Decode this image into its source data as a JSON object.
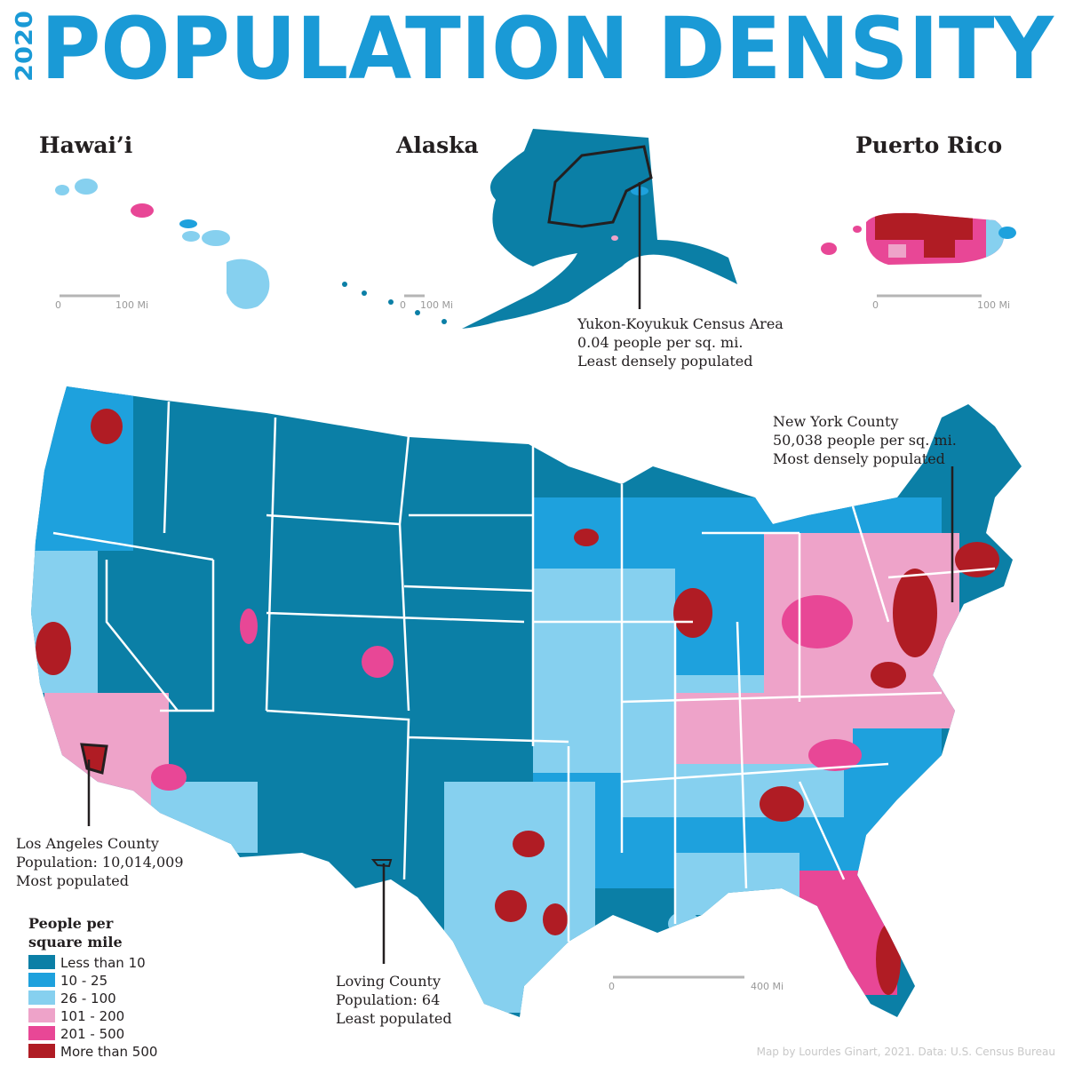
{
  "header": {
    "year": "2020",
    "title": "POPULATION DENSITY"
  },
  "insets": [
    {
      "label": "Hawai’i",
      "scale": {
        "start": "0",
        "end": "100 Mi"
      }
    },
    {
      "label": "Alaska",
      "scale": {
        "start": "0",
        "end": "100 Mi"
      }
    },
    {
      "label": "Puerto Rico",
      "scale": {
        "start": "0",
        "end": "100 Mi"
      }
    }
  ],
  "main_scale": {
    "start": "0",
    "end": "400 Mi"
  },
  "annotations": [
    {
      "lines": [
        "Yukon-Koyukuk Census Area",
        "0.04 people per sq. mi.",
        "Least densely populated"
      ]
    },
    {
      "lines": [
        "New York County",
        "50,038 people per sq. mi.",
        "Most densely populated"
      ]
    },
    {
      "lines": [
        "Los Angeles County",
        "Population: 10,014,009",
        "Most populated"
      ]
    },
    {
      "lines": [
        "Loving County",
        "Population: 64",
        "Least populated"
      ]
    }
  ],
  "legend": {
    "title_lines": [
      "People per",
      "square mile"
    ],
    "items": [
      {
        "label": "Less than 10",
        "color": "#0b7fa6"
      },
      {
        "label": "10 - 25",
        "color": "#1ea1dd"
      },
      {
        "label": "26 - 100",
        "color": "#86d0ef"
      },
      {
        "label": "101 - 200",
        "color": "#eea3c9"
      },
      {
        "label": "201 - 500",
        "color": "#e84796"
      },
      {
        "label": "More than 500",
        "color": "#b01c24"
      }
    ]
  },
  "credit": "Map by Lourdes Ginart, 2021. Data: U.S. Census Bureau"
}
